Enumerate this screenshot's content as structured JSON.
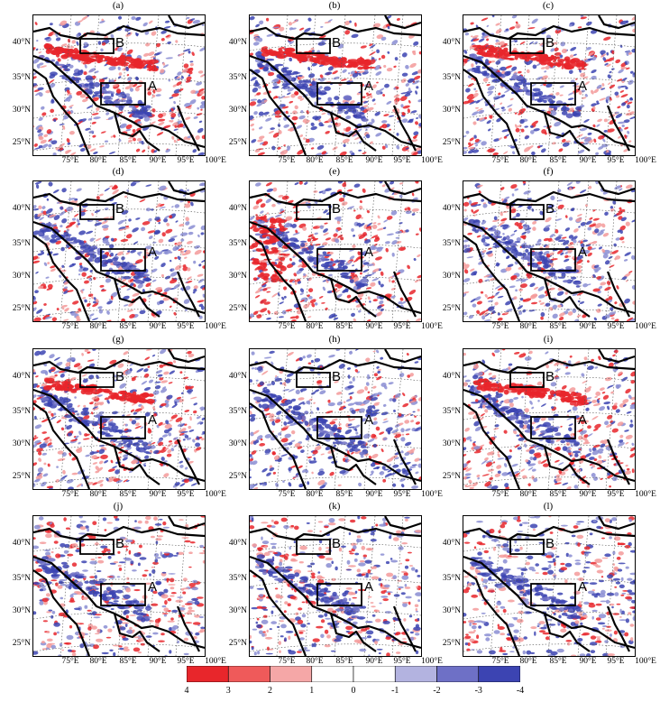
{
  "panels": [
    {
      "label": "(a)",
      "seed": 11,
      "red": 0.55,
      "blue": 0.55,
      "hot": "tibet-north",
      "pattern": 1
    },
    {
      "label": "(b)",
      "seed": 23,
      "red": 0.55,
      "blue": 0.55,
      "hot": "tibet-north",
      "pattern": 1
    },
    {
      "label": "(c)",
      "seed": 37,
      "red": 0.55,
      "blue": 0.6,
      "hot": "tibet-north",
      "pattern": 2
    },
    {
      "label": "(d)",
      "seed": 41,
      "red": 0.35,
      "blue": 0.45,
      "hot": "none",
      "pattern": 3
    },
    {
      "label": "(e)",
      "seed": 53,
      "red": 0.6,
      "blue": 0.45,
      "hot": "west",
      "pattern": 3
    },
    {
      "label": "(f)",
      "seed": 67,
      "red": 0.45,
      "blue": 0.55,
      "hot": "none",
      "pattern": 3
    },
    {
      "label": "(g)",
      "seed": 71,
      "red": 0.55,
      "blue": 0.5,
      "hot": "tibet-north",
      "pattern": 1
    },
    {
      "label": "(h)",
      "seed": 83,
      "red": 0.35,
      "blue": 0.6,
      "hot": "none",
      "pattern": 2
    },
    {
      "label": "(i)",
      "seed": 97,
      "red": 0.6,
      "blue": 0.55,
      "hot": "tibet-north",
      "pattern": 1
    },
    {
      "label": "(j)",
      "seed": 101,
      "red": 0.4,
      "blue": 0.35,
      "hot": "none",
      "pattern": 4
    },
    {
      "label": "(k)",
      "seed": 113,
      "red": 0.55,
      "blue": 0.45,
      "hot": "none",
      "pattern": 4
    },
    {
      "label": "(l)",
      "seed": 127,
      "red": 0.5,
      "blue": 0.6,
      "hot": "none",
      "pattern": 4
    }
  ],
  "lat_labels": [
    "40°N",
    "35°N",
    "30°N",
    "25°N"
  ],
  "lon_labels": [
    "75°E",
    "80°E",
    "85°E",
    "90°E",
    "95°E",
    "100°E"
  ],
  "box_labels": {
    "a": "A",
    "b": "B"
  },
  "colorbar": {
    "ticks": [
      "4",
      "3",
      "2",
      "1",
      "0",
      "-1",
      "-2",
      "-3",
      "-4"
    ],
    "colors": [
      "#e8262b",
      "#ef5a5a",
      "#f5a7a7",
      "#ffffff",
      "#ffffff",
      "#b3b3e0",
      "#6e70c6",
      "#3c44b2"
    ]
  }
}
